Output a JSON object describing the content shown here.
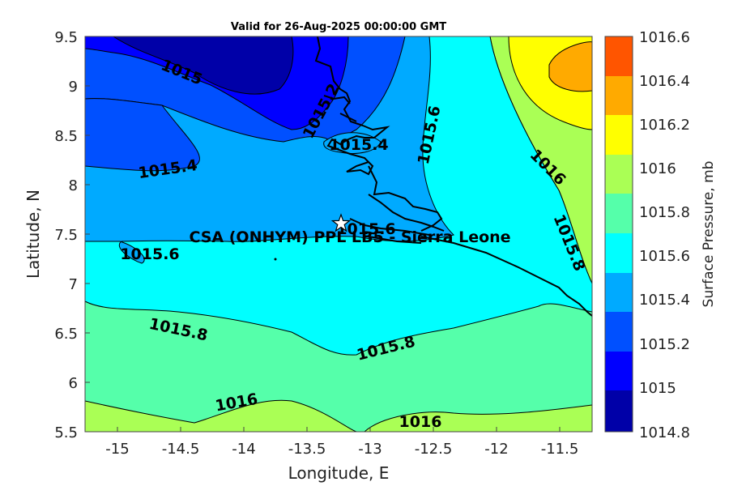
{
  "title": "Valid for 26-Aug-2025 00:00:00 GMT",
  "xlabel": "Longitude, E",
  "ylabel": "Latitude, N",
  "colorbar_label": "Surface Pressure, mb",
  "site_label": "CSA (ONHYM) PPL LB5 - Sierra Leone",
  "x_ticks": [
    "-15",
    "-14.5",
    "-14",
    "-13.5",
    "-13",
    "-12.5",
    "-12",
    "-11.5"
  ],
  "y_ticks": [
    "9.5",
    "9",
    "8.5",
    "8",
    "7.5",
    "7",
    "6.5",
    "6",
    "5.5"
  ],
  "colorbar_ticks": [
    "1016.6",
    "1016.4",
    "1016.2",
    "1016",
    "1015.8",
    "1015.6",
    "1015.4",
    "1015.2",
    "1015",
    "1014.8"
  ],
  "contour_labels": [
    {
      "text": "1015"
    },
    {
      "text": "1015.2"
    },
    {
      "text": "1015.4"
    },
    {
      "text": "1015.4"
    },
    {
      "text": "1015.6"
    },
    {
      "text": "1015.6"
    },
    {
      "text": "1015.6"
    },
    {
      "text": "1016"
    },
    {
      "text": "1015.8"
    },
    {
      "text": "1015.8"
    },
    {
      "text": "1015.8"
    },
    {
      "text": "1016"
    },
    {
      "text": "1016"
    }
  ],
  "chart_data": {
    "type": "heatmap",
    "title": "Valid for 26-Aug-2025 00:00:00 GMT",
    "xlabel": "Longitude, E",
    "ylabel": "Latitude, N",
    "xlim": [
      -15.25,
      -11.25
    ],
    "ylim": [
      5.5,
      9.5
    ],
    "colorbar": {
      "label": "Surface Pressure, mb",
      "levels": [
        1014.8,
        1015.0,
        1015.2,
        1015.4,
        1015.6,
        1015.8,
        1016.0,
        1016.2,
        1016.4,
        1016.6
      ],
      "colors": [
        "#0000a8",
        "#0000ff",
        "#0050ff",
        "#00aaff",
        "#00ffff",
        "#55ffaa",
        "#aaff55",
        "#ffff00",
        "#ffaa00",
        "#ff5500"
      ]
    },
    "site": {
      "name": "CSA (ONHYM) PPL LB5 - Sierra Leone",
      "lon": -13.22,
      "lat": 7.6
    }
  }
}
